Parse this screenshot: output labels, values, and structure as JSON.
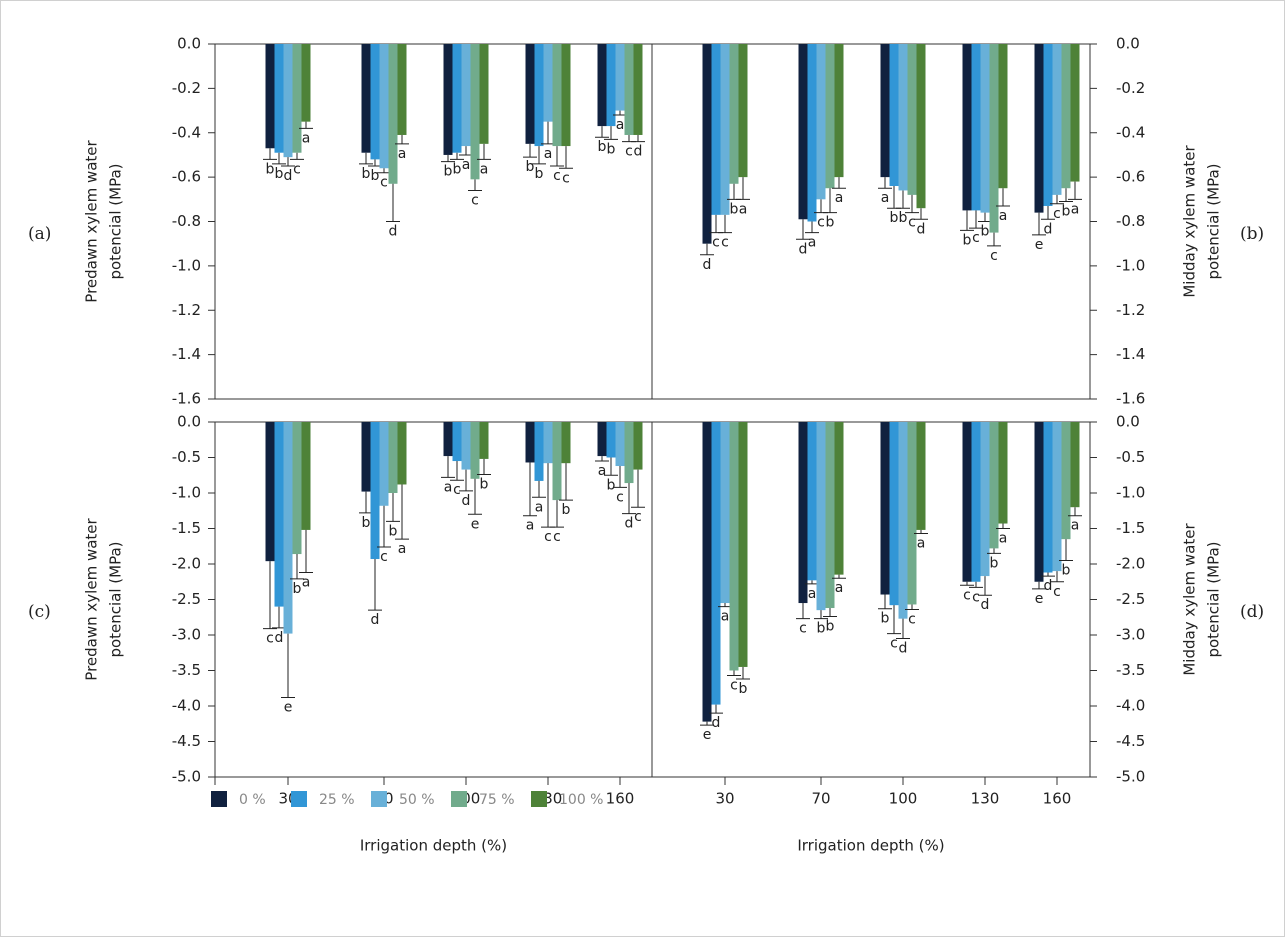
{
  "legend": [
    {
      "name": "0 %",
      "color": "#10213f"
    },
    {
      "name": "25 %",
      "color": "#3196d6"
    },
    {
      "name": "50 %",
      "color": "#68b0d8"
    },
    {
      "name": "75 %",
      "color": "#71ab8c"
    },
    {
      "name": "100 %",
      "color": "#4e8238"
    }
  ],
  "chart_data": [
    {
      "type": "bar",
      "panel": "(a)",
      "ylabel": [
        "Predawn xylem water",
        "potencial (MPa)"
      ],
      "categories": [
        null,
        null,
        null,
        null,
        null
      ],
      "ylim": [
        -1.6,
        0
      ],
      "yticks": [
        {
          "value": 0,
          "label": "0.0"
        },
        -0.2,
        -0.4,
        -0.6,
        -0.8,
        {
          "value": -1,
          "label": "-1.0"
        },
        -1.2,
        -1.4,
        -1.6
      ],
      "series": [
        {
          "values": [
            -0.47,
            -0.49,
            -0.5,
            -0.45,
            -0.37
          ],
          "errors": [
            0.05,
            0.05,
            0.03,
            0.06,
            0.05
          ],
          "letters": [
            "b",
            "b",
            "b",
            "b",
            "b"
          ]
        },
        {
          "values": [
            -0.49,
            -0.52,
            -0.49,
            -0.46,
            -0.37
          ],
          "errors": [
            0.05,
            0.03,
            0.03,
            0.08,
            0.06
          ],
          "letters": [
            "b",
            "b",
            "b",
            "b",
            "b"
          ]
        },
        {
          "values": [
            -0.51,
            -0.56,
            -0.46,
            -0.35,
            -0.3
          ],
          "errors": [
            0.04,
            0.02,
            0.04,
            0.1,
            0.02
          ],
          "letters": [
            "d",
            "c",
            "a",
            "a",
            "a"
          ]
        },
        {
          "values": [
            -0.49,
            -0.63,
            -0.61,
            -0.46,
            -0.41
          ],
          "errors": [
            0.03,
            0.17,
            0.05,
            0.09,
            0.03
          ],
          "letters": [
            "c",
            "d",
            "c",
            "c",
            "c"
          ]
        },
        {
          "values": [
            -0.35,
            -0.41,
            -0.45,
            -0.46,
            -0.41
          ],
          "errors": [
            0.03,
            0.04,
            0.07,
            0.1,
            0.03
          ],
          "letters": [
            "a",
            "a",
            "a",
            "c",
            "d"
          ]
        }
      ]
    },
    {
      "type": "bar",
      "panel": "(b)",
      "ylabel": [
        "Midday xylem water",
        "potencial (MPa)"
      ],
      "categories": [
        null,
        null,
        null,
        null,
        null
      ],
      "ylim": [
        -1.6,
        0
      ],
      "yticks": [
        {
          "value": 0,
          "label": "0.0"
        },
        -0.2,
        -0.4,
        -0.6,
        -0.8,
        {
          "value": -1,
          "label": "-1.0"
        },
        -1.2,
        -1.4,
        -1.6
      ],
      "series": [
        {
          "values": [
            -0.9,
            -0.79,
            -0.6,
            -0.75,
            -0.76
          ],
          "errors": [
            0.05,
            0.09,
            0.05,
            0.09,
            0.1
          ],
          "letters": [
            "d",
            "d",
            "a",
            "b",
            "e"
          ]
        },
        {
          "values": [
            -0.77,
            -0.8,
            -0.64,
            -0.75,
            -0.73
          ],
          "errors": [
            0.08,
            0.05,
            0.1,
            0.08,
            0.06
          ],
          "letters": [
            "c",
            "a",
            "b",
            "c",
            "d"
          ]
        },
        {
          "values": [
            -0.77,
            -0.7,
            -0.66,
            -0.76,
            -0.68
          ],
          "errors": [
            0.08,
            0.06,
            0.08,
            0.04,
            0.04
          ],
          "letters": [
            "c",
            "c",
            "b",
            "b",
            "c"
          ]
        },
        {
          "values": [
            -0.63,
            -0.65,
            -0.68,
            -0.85,
            -0.65
          ],
          "errors": [
            0.07,
            0.11,
            0.08,
            0.06,
            0.06
          ],
          "letters": [
            "b",
            "b",
            "c",
            "c",
            "b"
          ]
        },
        {
          "values": [
            -0.6,
            -0.6,
            -0.74,
            -0.65,
            -0.62
          ],
          "errors": [
            0.1,
            0.05,
            0.05,
            0.08,
            0.08
          ],
          "letters": [
            "a",
            "a",
            "d",
            "a",
            "a"
          ]
        }
      ]
    },
    {
      "type": "bar",
      "panel": "(c)",
      "ylabel": [
        "Predawn xylem water",
        "potencial (MPa)"
      ],
      "xlabel": "Irrigation depth (%)",
      "categories": [
        "30",
        "70",
        "100",
        "130",
        "160"
      ],
      "ylim": [
        -5,
        0
      ],
      "yticks": [
        {
          "value": 0,
          "label": "0.0"
        },
        -0.5,
        {
          "value": -1,
          "label": "-1.0"
        },
        -1.5,
        {
          "value": -2,
          "label": "-2.0"
        },
        -2.5,
        {
          "value": -3,
          "label": "-3.0"
        },
        -3.5,
        {
          "value": -4,
          "label": "-4.0"
        },
        -4.5,
        {
          "value": -5,
          "label": "-5.0"
        }
      ],
      "series": [
        {
          "values": [
            -1.96,
            -0.98,
            -0.48,
            -0.57,
            -0.48
          ],
          "errors": [
            0.95,
            0.3,
            0.3,
            0.75,
            0.07
          ],
          "letters": [
            "c",
            "b",
            "a",
            "a",
            "a"
          ]
        },
        {
          "values": [
            -2.6,
            -1.93,
            -0.55,
            -0.83,
            -0.5
          ],
          "errors": [
            0.3,
            0.72,
            0.27,
            0.23,
            0.25
          ],
          "letters": [
            "d",
            "d",
            "c",
            "a",
            "b"
          ]
        },
        {
          "values": [
            -2.98,
            -1.18,
            -0.67,
            -0.58,
            -0.62
          ],
          "errors": [
            0.9,
            0.58,
            0.3,
            0.9,
            0.3
          ],
          "letters": [
            "e",
            "c",
            "d",
            "c",
            "c"
          ]
        },
        {
          "values": [
            -1.86,
            -1.0,
            -0.8,
            -1.1,
            -0.86
          ],
          "errors": [
            0.35,
            0.4,
            0.5,
            0.38,
            0.43
          ],
          "letters": [
            "b",
            "b",
            "e",
            "c",
            "d"
          ]
        },
        {
          "values": [
            -1.52,
            -0.88,
            -0.52,
            -0.58,
            -0.67
          ],
          "errors": [
            0.6,
            0.77,
            0.22,
            0.52,
            0.53
          ],
          "letters": [
            "a",
            "a",
            "b",
            "b",
            "c"
          ]
        }
      ]
    },
    {
      "type": "bar",
      "panel": "(d)",
      "ylabel": [
        "Midday xylem water",
        "potencial (MPa)"
      ],
      "xlabel": "Irrigation depth (%)",
      "categories": [
        "30",
        "70",
        "100",
        "130",
        "160"
      ],
      "ylim": [
        -5,
        0
      ],
      "yticks": [
        {
          "value": 0,
          "label": "0.0"
        },
        -0.5,
        {
          "value": -1,
          "label": "-1.0"
        },
        -1.5,
        {
          "value": -2,
          "label": "-2.0"
        },
        -2.5,
        {
          "value": -3,
          "label": "-3.0"
        },
        -3.5,
        {
          "value": -4,
          "label": "-4.0"
        },
        -4.5,
        {
          "value": -5,
          "label": "-5.0"
        }
      ],
      "series": [
        {
          "values": [
            -4.22,
            -2.55,
            -2.43,
            -2.25,
            -2.25
          ],
          "errors": [
            0.05,
            0.22,
            0.2,
            0.05,
            0.1
          ],
          "letters": [
            "e",
            "c",
            "b",
            "c",
            "e"
          ]
        },
        {
          "values": [
            -3.98,
            -2.23,
            -2.58,
            -2.25,
            -2.12
          ],
          "errors": [
            0.12,
            0.05,
            0.4,
            0.08,
            0.05
          ],
          "letters": [
            "d",
            "a",
            "c",
            "c",
            "d"
          ]
        },
        {
          "values": [
            -2.55,
            -2.65,
            -2.77,
            -2.17,
            -2.1
          ],
          "errors": [
            0.05,
            0.12,
            0.28,
            0.27,
            0.15
          ],
          "letters": [
            "a",
            "b",
            "d",
            "d",
            "c"
          ]
        },
        {
          "values": [
            -3.5,
            -2.62,
            -2.57,
            -1.78,
            -1.65
          ],
          "errors": [
            0.07,
            0.12,
            0.07,
            0.07,
            0.3
          ],
          "letters": [
            "c",
            "b",
            "c",
            "b",
            "b"
          ]
        },
        {
          "values": [
            -3.45,
            -2.15,
            -1.52,
            -1.43,
            -1.2
          ],
          "errors": [
            0.17,
            0.05,
            0.05,
            0.07,
            0.12
          ],
          "letters": [
            "b",
            "a",
            "a",
            "a",
            "a"
          ]
        }
      ]
    }
  ]
}
